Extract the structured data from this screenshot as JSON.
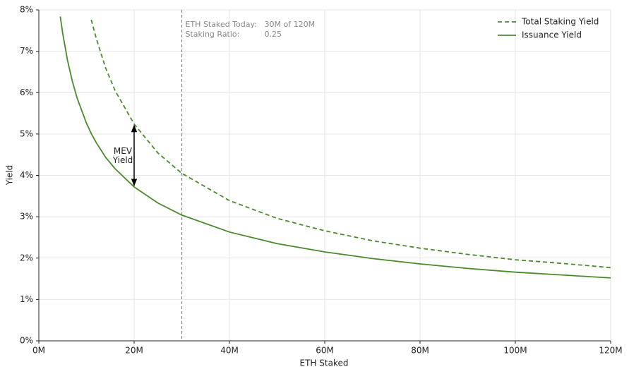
{
  "chart_data": {
    "type": "line",
    "x_label": "ETH Staked",
    "y_label": "Yield",
    "x": [
      4.5,
      5,
      6,
      7,
      8,
      10,
      11,
      12,
      14,
      16,
      20,
      25,
      30,
      40,
      50,
      60,
      70,
      80,
      90,
      100,
      110,
      120
    ],
    "series": [
      {
        "name": "Total Staking Yield",
        "color": "#4a8a2c",
        "dash": true,
        "values": [
          null,
          null,
          null,
          null,
          null,
          null,
          7.76,
          7.33,
          6.6,
          6.05,
          5.24,
          4.54,
          4.05,
          3.39,
          2.96,
          2.66,
          2.42,
          2.24,
          2.09,
          1.96,
          1.87,
          1.77
        ]
      },
      {
        "name": "Issuance Yield",
        "color": "#4a8a2c",
        "dash": false,
        "values": [
          7.84,
          7.44,
          6.79,
          6.29,
          5.88,
          5.26,
          5.01,
          4.8,
          4.44,
          4.16,
          3.72,
          3.33,
          3.04,
          2.63,
          2.35,
          2.15,
          1.99,
          1.86,
          1.75,
          1.66,
          1.59,
          1.52
        ]
      }
    ],
    "xlim": [
      0,
      120
    ],
    "xticks": [
      {
        "value": 0,
        "label": "0M"
      },
      {
        "value": 20,
        "label": "20M"
      },
      {
        "value": 40,
        "label": "40M"
      },
      {
        "value": 60,
        "label": "60M"
      },
      {
        "value": 80,
        "label": "80M"
      },
      {
        "value": 100,
        "label": "100M"
      },
      {
        "value": 120,
        "label": "120M"
      }
    ],
    "ylim": [
      0,
      8
    ],
    "yticks": [
      {
        "value": 0,
        "label": "0%"
      },
      {
        "value": 1,
        "label": "1%"
      },
      {
        "value": 2,
        "label": "2%"
      },
      {
        "value": 3,
        "label": "3%"
      },
      {
        "value": 4,
        "label": "4%"
      },
      {
        "value": 5,
        "label": "5%"
      },
      {
        "value": 6,
        "label": "6%"
      },
      {
        "value": 7,
        "label": "7%"
      },
      {
        "value": 8,
        "label": "8%"
      }
    ],
    "grid": true,
    "legend": "upper right",
    "vline": 30,
    "info": [
      {
        "label": "ETH Staked Today:",
        "value": "30M of 120M"
      },
      {
        "label": "Staking Ratio:",
        "value": "0.25"
      }
    ],
    "arrow": {
      "x": 20,
      "from": 3.72,
      "to": 5.24,
      "text": [
        "MEV",
        "Yield"
      ]
    }
  }
}
